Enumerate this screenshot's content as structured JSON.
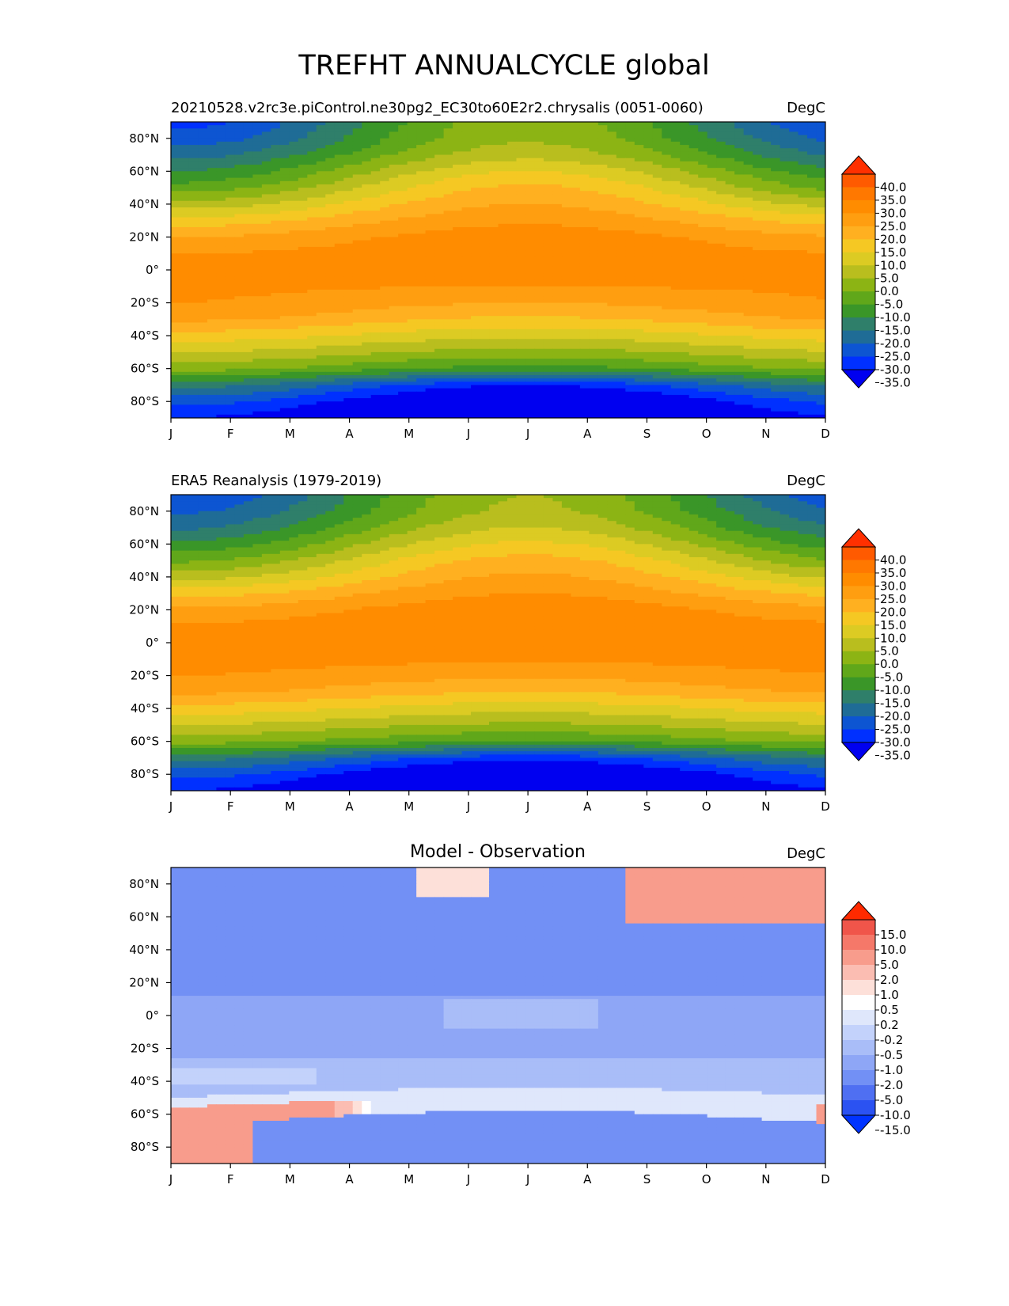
{
  "figure_title": "TREFHT ANNUALCYCLE global",
  "panels": [
    {
      "left_title": "20210528.v2rc3e.piControl.ne30pg2_EC30to60E2r2.chrysalis (0051-0060)",
      "center_title": "",
      "units": "DegC"
    },
    {
      "left_title": "ERA5 Reanalysis (1979-2019)",
      "center_title": "",
      "units": "DegC"
    },
    {
      "left_title": "",
      "center_title": "Model - Observation",
      "units": "DegC"
    }
  ],
  "colorbars": {
    "abs_labels": [
      "40.0",
      "35.0",
      "30.0",
      "25.0",
      "20.0",
      "15.0",
      "10.0",
      "5.0",
      "0.0",
      "-5.0",
      "-10.0",
      "-15.0",
      "-20.0",
      "-25.0",
      "-30.0",
      "-35.0"
    ],
    "abs_colors": [
      "#ff3000",
      "#ff5a00",
      "#ff7800",
      "#ff8c00",
      "#ff9e10",
      "#ffb020",
      "#f5c823",
      "#dccb23",
      "#b9be1e",
      "#8cb414",
      "#60a71a",
      "#3a9628",
      "#2f7f6a",
      "#1f6c96",
      "#0d55d2",
      "#0030ff",
      "#0000f0"
    ],
    "diff_labels": [
      "15.0",
      "10.0",
      "5.0",
      "2.0",
      "1.0",
      "0.5",
      "0.2",
      "-0.2",
      "-0.5",
      "-1.0",
      "-2.0",
      "-5.0",
      "-10.0",
      "-15.0"
    ],
    "diff_colors": [
      "#ff2a00",
      "#f0554a",
      "#f57869",
      "#f89c8c",
      "#fbbdb2",
      "#fde0d9",
      "#ffffff",
      "#dfe7fb",
      "#c3d2fb",
      "#a9bdf8",
      "#8ea6f6",
      "#7290f5",
      "#4f6ff2",
      "#2b52f2",
      "#0033ff"
    ]
  },
  "chart_data": [
    {
      "type": "heatmap",
      "title": "20210528.v2rc3e.piControl.ne30pg2_EC30to60E2r2.chrysalis (0051-0060)",
      "units": "DegC",
      "xlabel": "",
      "ylabel": "",
      "x_ticks": [
        "J",
        "F",
        "M",
        "A",
        "M",
        "J",
        "J",
        "A",
        "S",
        "O",
        "N",
        "D"
      ],
      "y_ticks": [
        "80°N",
        "60°N",
        "40°N",
        "20°N",
        "0°",
        "20°S",
        "40°S",
        "60°S",
        "80°S"
      ],
      "y_tick_values": [
        80,
        60,
        40,
        20,
        0,
        -20,
        -40,
        -60,
        -80
      ],
      "ylim": [
        -90,
        90
      ],
      "levels": [
        -35,
        -30,
        -25,
        -20,
        -15,
        -10,
        -5,
        0,
        5,
        10,
        15,
        20,
        25,
        30,
        35,
        40
      ],
      "rows": {
        "lat": [
          90,
          80,
          70,
          60,
          50,
          40,
          30,
          20,
          10,
          0,
          -10,
          -20,
          -30,
          -40,
          -50,
          -60,
          -70,
          -80,
          -90
        ],
        "J": [
          -32,
          -28,
          -22,
          -15,
          -8,
          2,
          12,
          20,
          25,
          26,
          26,
          25,
          21,
          13,
          5,
          -3,
          -18,
          -28,
          -35
        ],
        "Jul": [
          -2,
          -1,
          3,
          10,
          16,
          20,
          24,
          28,
          29,
          27,
          25,
          20,
          14,
          6,
          -2,
          -12,
          -35,
          -45,
          -50
        ]
      }
    },
    {
      "type": "heatmap",
      "title": "ERA5 Reanalysis (1979-2019)",
      "units": "DegC",
      "xlabel": "",
      "ylabel": "",
      "x_ticks": [
        "J",
        "F",
        "M",
        "A",
        "M",
        "J",
        "J",
        "A",
        "S",
        "O",
        "N",
        "D"
      ],
      "y_ticks": [
        "80°N",
        "60°N",
        "40°N",
        "20°N",
        "0°",
        "20°S",
        "40°S",
        "60°S",
        "80°S"
      ],
      "y_tick_values": [
        80,
        60,
        40,
        20,
        0,
        -20,
        -40,
        -60,
        -80
      ],
      "ylim": [
        -90,
        90
      ],
      "levels": [
        -35,
        -30,
        -25,
        -20,
        -15,
        -10,
        -5,
        0,
        5,
        10,
        15,
        20,
        25,
        30,
        35,
        40
      ],
      "rows": {
        "lat": [
          90,
          80,
          70,
          60,
          50,
          40,
          30,
          20,
          10,
          0,
          -10,
          -20,
          -30,
          -40,
          -50,
          -60,
          -70,
          -80,
          -90
        ],
        "J": [
          -30,
          -26,
          -21,
          -14,
          -6,
          3,
          13,
          21,
          26,
          27,
          27,
          25,
          21,
          13,
          5,
          -3,
          -18,
          -28,
          -35
        ],
        "Jul": [
          0,
          1,
          5,
          11,
          17,
          21,
          25,
          29,
          30,
          28,
          26,
          21,
          15,
          7,
          -1,
          -10,
          -33,
          -45,
          -50
        ]
      }
    },
    {
      "type": "heatmap",
      "title": "Model - Observation",
      "units": "DegC",
      "xlabel": "",
      "ylabel": "",
      "x_ticks": [
        "J",
        "F",
        "M",
        "A",
        "M",
        "J",
        "J",
        "A",
        "S",
        "O",
        "N",
        "D"
      ],
      "y_ticks": [
        "80°N",
        "60°N",
        "40°N",
        "20°N",
        "0°",
        "20°S",
        "40°S",
        "60°S",
        "80°S"
      ],
      "y_tick_values": [
        80,
        60,
        40,
        20,
        0,
        -20,
        -40,
        -60,
        -80
      ],
      "ylim": [
        -90,
        90
      ],
      "levels": [
        -15,
        -10,
        -5,
        -2,
        -1,
        -0.5,
        -0.2,
        0.2,
        0.5,
        1,
        2,
        5,
        10,
        15
      ]
    }
  ]
}
